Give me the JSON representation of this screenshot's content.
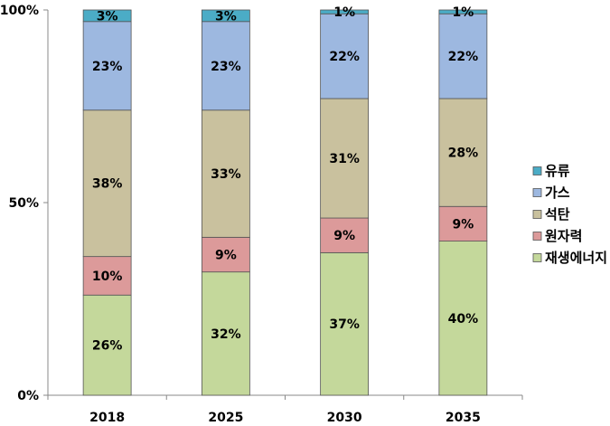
{
  "chart_data": {
    "type": "bar",
    "stacked": true,
    "categories": [
      "2018",
      "2025",
      "2030",
      "2035"
    ],
    "series": [
      {
        "name": "재생에너지",
        "color": "#c4d89b",
        "values": [
          26,
          32,
          37,
          40
        ]
      },
      {
        "name": "원자력",
        "color": "#dc9a9a",
        "values": [
          10,
          9,
          9,
          9
        ]
      },
      {
        "name": "석탄",
        "color": "#c9c19e",
        "values": [
          38,
          33,
          31,
          28
        ]
      },
      {
        "name": "가스",
        "color": "#9db8e0",
        "values": [
          23,
          23,
          22,
          22
        ]
      },
      {
        "name": "유류",
        "color": "#4bacc6",
        "values": [
          3,
          3,
          1,
          1
        ]
      }
    ],
    "legend_order": [
      "유류",
      "가스",
      "석탄",
      "원자력",
      "재생에너지"
    ],
    "y_ticks": [
      "0%",
      "50%",
      "100%"
    ],
    "ylim": [
      0,
      100
    ],
    "title": "",
    "xlabel": "",
    "ylabel": "",
    "legend_position": "right"
  }
}
